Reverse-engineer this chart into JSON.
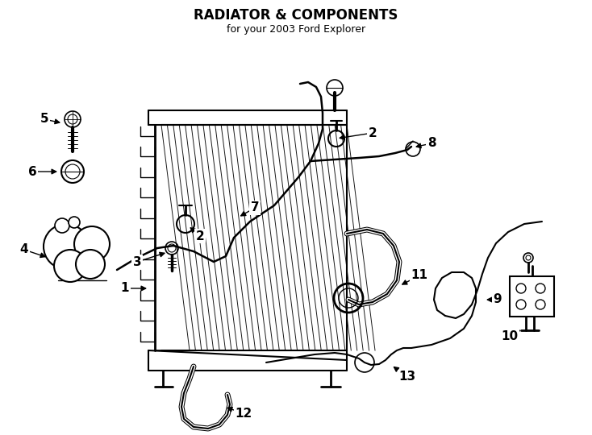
{
  "title": "RADIATOR & COMPONENTS",
  "subtitle": "for your 2003 Ford Explorer",
  "bg": "#ffffff",
  "fg": "#000000",
  "fig_w": 7.34,
  "fig_h": 5.4,
  "dpi": 100
}
